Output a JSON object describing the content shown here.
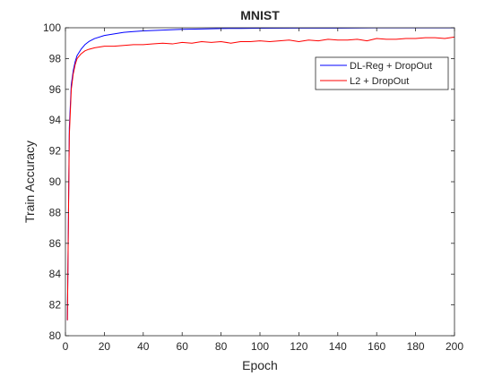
{
  "chart_data": {
    "type": "line",
    "title": "MNIST",
    "xlabel": "Epoch",
    "ylabel": "Train Accuracy",
    "xlim": [
      0,
      200
    ],
    "ylim": [
      80,
      100
    ],
    "xticks": [
      0,
      20,
      40,
      60,
      80,
      100,
      120,
      140,
      160,
      180,
      200
    ],
    "yticks": [
      80,
      82,
      84,
      86,
      88,
      90,
      92,
      94,
      96,
      98,
      100
    ],
    "grid": false,
    "legend_position": "top-right",
    "series": [
      {
        "name": "DL-Reg + DropOut",
        "color": "#0000ff",
        "x": [
          1,
          2,
          3,
          4,
          5,
          6,
          8,
          10,
          12,
          15,
          20,
          25,
          30,
          35,
          40,
          50,
          60,
          70,
          80,
          90,
          100,
          120,
          140,
          160,
          180,
          200
        ],
        "y": [
          81.0,
          93.5,
          96.3,
          97.2,
          97.8,
          98.2,
          98.6,
          98.9,
          99.1,
          99.3,
          99.5,
          99.6,
          99.7,
          99.75,
          99.8,
          99.85,
          99.9,
          99.92,
          99.95,
          99.96,
          99.97,
          99.98,
          99.98,
          99.99,
          99.99,
          99.99
        ]
      },
      {
        "name": "L2 + DropOut",
        "color": "#ff0000",
        "x": [
          1,
          2,
          3,
          4,
          5,
          6,
          8,
          10,
          12,
          15,
          20,
          25,
          30,
          35,
          40,
          45,
          50,
          55,
          60,
          65,
          70,
          75,
          80,
          85,
          90,
          95,
          100,
          105,
          110,
          115,
          120,
          125,
          130,
          135,
          140,
          145,
          150,
          155,
          160,
          165,
          170,
          175,
          180,
          185,
          190,
          195,
          200
        ],
        "y": [
          81.0,
          93.0,
          96.0,
          97.0,
          97.6,
          98.0,
          98.3,
          98.5,
          98.6,
          98.7,
          98.8,
          98.8,
          98.85,
          98.9,
          98.9,
          98.95,
          99.0,
          98.95,
          99.05,
          99.0,
          99.1,
          99.05,
          99.1,
          99.0,
          99.1,
          99.1,
          99.15,
          99.1,
          99.15,
          99.2,
          99.1,
          99.2,
          99.15,
          99.25,
          99.2,
          99.2,
          99.25,
          99.15,
          99.3,
          99.25,
          99.25,
          99.3,
          99.3,
          99.35,
          99.35,
          99.3,
          99.4
        ]
      }
    ]
  }
}
